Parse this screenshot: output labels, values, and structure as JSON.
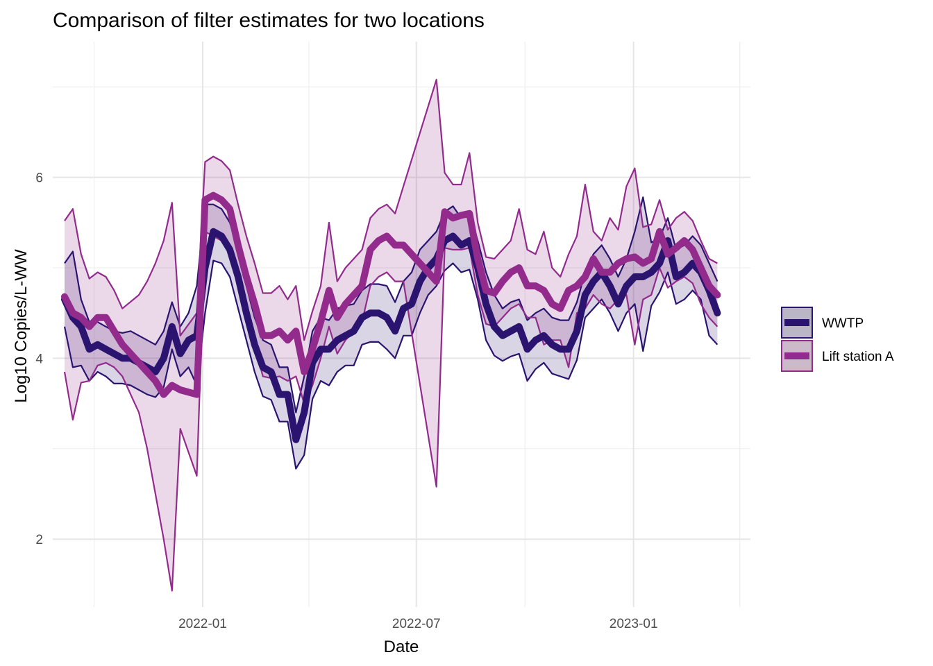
{
  "chart_data": {
    "type": "line",
    "title": "Comparison of filter estimates for two locations",
    "xlabel": "Date",
    "ylabel": "Log10 Copies/L-WW",
    "ylim": [
      1.25,
      7.5
    ],
    "xlim": [
      "2021-08-27",
      "2023-04-10"
    ],
    "y_ticks": [
      2,
      4,
      6
    ],
    "x_ticks": [
      {
        "date": "2022-01-01",
        "label": "2022-01"
      },
      {
        "date": "2022-07-01",
        "label": "2022-07"
      },
      {
        "date": "2023-01-01",
        "label": "2023-01"
      }
    ],
    "minor_x_ticks": [
      "2021-10-01",
      "2022-04-01",
      "2022-10-01",
      "2023-04-01"
    ],
    "minor_y_ticks": [
      3,
      5,
      7
    ],
    "grid": true,
    "legend_position": "right",
    "series": [
      {
        "name": "WWTP",
        "color": "#2a1470",
        "fill": "#2a1470",
        "x": [
          "2021-09-06",
          "2021-09-13",
          "2021-09-20",
          "2021-09-27",
          "2021-10-04",
          "2021-10-11",
          "2021-10-18",
          "2021-10-25",
          "2021-11-01",
          "2021-11-08",
          "2021-11-15",
          "2021-11-22",
          "2021-11-29",
          "2021-12-06",
          "2021-12-13",
          "2021-12-20",
          "2021-12-27",
          "2022-01-03",
          "2022-01-10",
          "2022-01-17",
          "2022-01-24",
          "2022-01-31",
          "2022-02-07",
          "2022-02-14",
          "2022-02-21",
          "2022-02-28",
          "2022-03-07",
          "2022-03-14",
          "2022-03-21",
          "2022-03-28",
          "2022-04-04",
          "2022-04-11",
          "2022-04-18",
          "2022-04-25",
          "2022-05-02",
          "2022-05-09",
          "2022-05-16",
          "2022-05-23",
          "2022-05-30",
          "2022-06-06",
          "2022-06-13",
          "2022-06-20",
          "2022-06-27",
          "2022-07-04",
          "2022-07-11",
          "2022-07-18",
          "2022-07-25",
          "2022-08-01",
          "2022-08-08",
          "2022-08-15",
          "2022-08-22",
          "2022-08-29",
          "2022-09-05",
          "2022-09-12",
          "2022-09-19",
          "2022-09-26",
          "2022-10-03",
          "2022-10-10",
          "2022-10-17",
          "2022-10-24",
          "2022-10-31",
          "2022-11-07",
          "2022-11-14",
          "2022-11-21",
          "2022-11-28",
          "2022-12-05",
          "2022-12-12",
          "2022-12-19",
          "2022-12-26",
          "2023-01-02",
          "2023-01-09",
          "2023-01-16",
          "2023-01-23",
          "2023-01-30",
          "2023-02-06",
          "2023-02-13",
          "2023-02-20",
          "2023-02-27",
          "2023-03-06",
          "2023-03-13"
        ],
        "values": [
          4.65,
          4.45,
          4.35,
          4.1,
          4.15,
          4.1,
          4.05,
          4.0,
          4.0,
          3.95,
          3.9,
          3.85,
          4.0,
          4.35,
          4.05,
          4.2,
          4.25,
          5.0,
          5.4,
          5.35,
          5.2,
          4.9,
          4.5,
          4.15,
          3.9,
          3.85,
          3.6,
          3.6,
          3.1,
          3.4,
          3.95,
          4.1,
          4.1,
          4.2,
          4.25,
          4.3,
          4.45,
          4.5,
          4.5,
          4.45,
          4.3,
          4.55,
          4.6,
          4.85,
          5.0,
          5.1,
          5.3,
          5.35,
          5.25,
          5.3,
          5.0,
          4.6,
          4.35,
          4.25,
          4.3,
          4.35,
          4.1,
          4.2,
          4.25,
          4.15,
          4.1,
          4.1,
          4.3,
          4.7,
          4.85,
          4.95,
          4.8,
          4.6,
          4.8,
          4.9,
          4.9,
          4.95,
          5.05,
          5.3,
          4.9,
          4.95,
          5.05,
          4.95,
          4.75,
          4.5
        ],
        "lower": [
          4.35,
          3.9,
          3.92,
          3.75,
          3.85,
          3.8,
          3.72,
          3.72,
          3.7,
          3.65,
          3.6,
          3.57,
          3.68,
          4.1,
          3.8,
          3.9,
          3.7,
          4.5,
          5.08,
          5.05,
          4.9,
          4.55,
          4.2,
          3.85,
          3.58,
          3.54,
          3.3,
          3.3,
          2.78,
          2.93,
          3.55,
          3.75,
          3.7,
          3.85,
          3.92,
          3.92,
          4.15,
          4.18,
          4.18,
          4.1,
          4.0,
          4.25,
          4.25,
          4.5,
          4.7,
          4.8,
          4.97,
          5.05,
          4.95,
          4.98,
          4.65,
          4.2,
          4.03,
          3.97,
          4.02,
          4.05,
          3.75,
          3.88,
          3.95,
          3.83,
          3.8,
          3.77,
          3.98,
          4.45,
          4.55,
          4.65,
          4.5,
          4.3,
          4.5,
          4.6,
          4.08,
          4.58,
          4.73,
          4.95,
          4.6,
          4.65,
          4.75,
          4.65,
          4.25,
          4.15
        ],
        "upper": [
          5.05,
          5.18,
          4.65,
          4.4,
          4.4,
          4.35,
          4.3,
          4.28,
          4.3,
          4.25,
          4.2,
          4.15,
          4.3,
          4.62,
          4.35,
          4.5,
          4.8,
          5.7,
          5.7,
          5.65,
          5.5,
          5.2,
          4.8,
          4.45,
          4.2,
          4.15,
          3.9,
          3.9,
          3.4,
          3.8,
          4.3,
          4.45,
          4.42,
          4.55,
          4.58,
          4.6,
          4.75,
          4.82,
          4.82,
          4.8,
          4.62,
          4.85,
          4.95,
          5.2,
          5.3,
          5.4,
          5.62,
          5.68,
          5.55,
          5.62,
          5.3,
          4.95,
          4.7,
          4.55,
          4.62,
          4.65,
          4.42,
          4.5,
          4.55,
          4.45,
          4.42,
          4.42,
          4.62,
          4.95,
          5.15,
          5.25,
          5.1,
          4.9,
          5.1,
          5.4,
          5.78,
          5.28,
          5.33,
          5.55,
          5.2,
          5.25,
          5.35,
          5.25,
          5.05,
          4.85
        ]
      },
      {
        "name": "Lift station A",
        "color": "#922b8c",
        "fill": "#922b8c",
        "x": [
          "2021-09-06",
          "2021-09-13",
          "2021-09-20",
          "2021-09-27",
          "2021-10-04",
          "2021-10-11",
          "2021-10-18",
          "2021-10-25",
          "2021-11-08",
          "2021-11-15",
          "2021-11-22",
          "2021-11-29",
          "2021-12-06",
          "2021-12-13",
          "2021-12-27",
          "2022-01-03",
          "2022-01-10",
          "2022-01-17",
          "2022-01-24",
          "2022-01-31",
          "2022-02-07",
          "2022-02-14",
          "2022-02-21",
          "2022-02-28",
          "2022-03-07",
          "2022-03-14",
          "2022-03-21",
          "2022-03-28",
          "2022-04-04",
          "2022-04-11",
          "2022-04-18",
          "2022-04-25",
          "2022-05-02",
          "2022-05-09",
          "2022-05-16",
          "2022-05-23",
          "2022-05-30",
          "2022-06-06",
          "2022-06-13",
          "2022-06-20",
          "2022-07-18",
          "2022-07-25",
          "2022-08-01",
          "2022-08-08",
          "2022-08-15",
          "2022-08-22",
          "2022-08-29",
          "2022-09-05",
          "2022-09-12",
          "2022-09-19",
          "2022-09-26",
          "2022-10-03",
          "2022-10-10",
          "2022-10-17",
          "2022-10-24",
          "2022-10-31",
          "2022-11-07",
          "2022-11-14",
          "2022-11-21",
          "2022-11-28",
          "2022-12-05",
          "2022-12-12",
          "2022-12-19",
          "2022-12-26",
          "2023-01-02",
          "2023-01-09",
          "2023-01-16",
          "2023-01-23",
          "2023-01-30",
          "2023-02-06",
          "2023-02-13",
          "2023-02-20",
          "2023-02-27",
          "2023-03-06",
          "2023-03-13"
        ],
        "values": [
          4.68,
          4.5,
          4.45,
          4.35,
          4.45,
          4.45,
          4.3,
          4.15,
          3.95,
          3.85,
          3.75,
          3.6,
          3.7,
          3.65,
          3.6,
          5.75,
          5.8,
          5.75,
          5.65,
          5.25,
          4.9,
          4.6,
          4.25,
          4.25,
          4.3,
          4.2,
          4.3,
          3.85,
          4.1,
          4.4,
          4.75,
          4.45,
          4.6,
          4.7,
          4.8,
          5.2,
          5.3,
          5.35,
          5.25,
          5.25,
          4.85,
          5.62,
          5.55,
          5.58,
          5.6,
          5.1,
          4.75,
          4.72,
          4.85,
          4.95,
          5.0,
          4.8,
          4.8,
          4.75,
          4.6,
          4.55,
          4.75,
          4.8,
          4.9,
          5.1,
          4.95,
          4.95,
          5.05,
          5.1,
          5.12,
          5.05,
          5.1,
          5.4,
          5.15,
          5.22,
          5.3,
          5.2,
          5.0,
          4.8,
          4.7
        ],
        "lower": [
          3.85,
          3.32,
          3.73,
          3.75,
          3.92,
          3.95,
          3.9,
          3.8,
          3.4,
          3.0,
          2.5,
          2.0,
          1.43,
          3.22,
          2.7,
          5.4,
          5.35,
          5.3,
          5.22,
          4.85,
          4.45,
          4.15,
          3.8,
          3.78,
          3.8,
          3.75,
          3.8,
          3.5,
          3.7,
          4.0,
          4.35,
          4.05,
          4.2,
          4.3,
          4.4,
          4.8,
          4.9,
          4.95,
          4.85,
          4.85,
          2.58,
          5.22,
          5.2,
          5.2,
          5.22,
          4.7,
          4.38,
          4.35,
          4.45,
          4.55,
          4.6,
          4.45,
          4.45,
          4.15,
          4.2,
          4.2,
          3.9,
          4.5,
          4.55,
          4.7,
          4.6,
          4.55,
          4.65,
          4.7,
          4.15,
          4.65,
          4.7,
          5.0,
          4.78,
          4.85,
          4.9,
          4.83,
          4.6,
          4.45,
          4.35
        ],
        "upper": [
          5.52,
          5.65,
          5.15,
          4.88,
          4.95,
          4.9,
          4.75,
          4.55,
          4.7,
          4.85,
          5.05,
          5.3,
          5.72,
          4.25,
          4.5,
          6.17,
          6.23,
          6.18,
          6.08,
          5.7,
          5.35,
          5.05,
          4.72,
          4.72,
          4.8,
          4.65,
          4.8,
          4.2,
          4.52,
          4.8,
          5.5,
          4.85,
          5.0,
          5.1,
          5.2,
          5.55,
          5.65,
          5.7,
          5.6,
          5.9,
          7.08,
          6.05,
          5.92,
          5.92,
          6.27,
          5.5,
          5.12,
          5.1,
          5.2,
          5.3,
          5.65,
          5.2,
          5.15,
          5.4,
          5.0,
          4.9,
          5.15,
          5.35,
          5.92,
          5.4,
          5.3,
          5.55,
          5.42,
          5.9,
          6.1,
          5.45,
          5.48,
          5.75,
          5.42,
          5.55,
          5.62,
          5.52,
          5.3,
          5.1,
          5.05
        ]
      }
    ]
  }
}
